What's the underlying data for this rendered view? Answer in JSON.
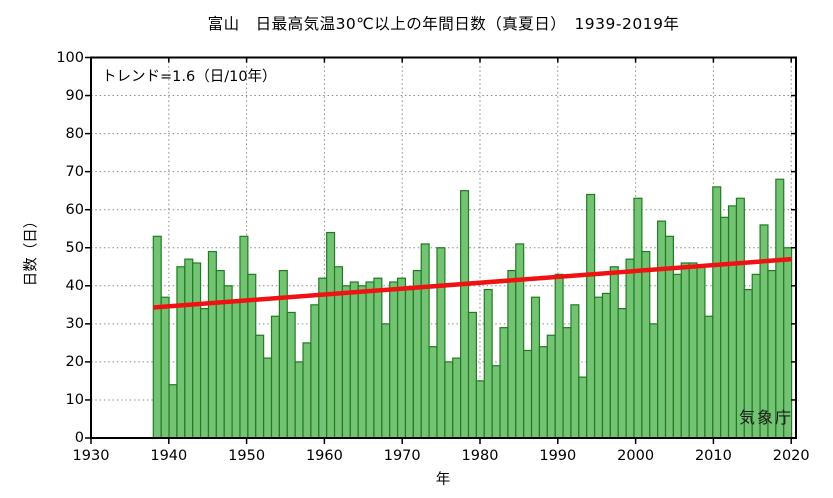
{
  "title": "富山　日最高気温30℃以上の年間日数（真夏日）　1939-2019年",
  "annotations": {
    "trend_label": "トレンド=1.6（日/10年）",
    "source": "気象庁"
  },
  "axes": {
    "xlabel": "年",
    "ylabel": "日数（日）",
    "x_ticks": [
      1930,
      1940,
      1950,
      1960,
      1970,
      1980,
      1990,
      2000,
      2010,
      2020
    ],
    "y_ticks": [
      0,
      10,
      20,
      30,
      40,
      50,
      60,
      70,
      80,
      90,
      100
    ]
  },
  "colors": {
    "bar_fill": "#74c274",
    "bar_stroke": "#1f7d1f",
    "trend_line": "#f01212",
    "grid": "#8a8a8a",
    "frame": "#000000",
    "background": "#ffffff"
  },
  "chart_data": {
    "type": "bar",
    "title": "富山　日最高気温30℃以上の年間日数（真夏日）　1939-2019年",
    "xlabel": "年",
    "ylabel": "日数（日）",
    "ylim": [
      0,
      100
    ],
    "xlim": [
      1930,
      2020.6
    ],
    "grid": true,
    "years": [
      1939,
      1940,
      1941,
      1942,
      1943,
      1944,
      1945,
      1946,
      1947,
      1948,
      1949,
      1950,
      1951,
      1952,
      1953,
      1954,
      1955,
      1956,
      1957,
      1958,
      1959,
      1960,
      1961,
      1962,
      1963,
      1964,
      1965,
      1966,
      1967,
      1968,
      1969,
      1970,
      1971,
      1972,
      1973,
      1974,
      1975,
      1976,
      1977,
      1978,
      1979,
      1980,
      1981,
      1982,
      1983,
      1984,
      1985,
      1986,
      1987,
      1988,
      1989,
      1990,
      1991,
      1992,
      1993,
      1994,
      1995,
      1996,
      1997,
      1998,
      1999,
      2000,
      2001,
      2002,
      2003,
      2004,
      2005,
      2006,
      2007,
      2008,
      2009,
      2010,
      2011,
      2012,
      2013,
      2014,
      2015,
      2016,
      2017,
      2018,
      2019
    ],
    "values": [
      53,
      37,
      14,
      45,
      47,
      46,
      34,
      49,
      44,
      40,
      36,
      53,
      43,
      27,
      21,
      32,
      44,
      33,
      20,
      25,
      35,
      42,
      54,
      45,
      40,
      41,
      40,
      41,
      42,
      30,
      41,
      42,
      39,
      44,
      51,
      24,
      50,
      20,
      21,
      65,
      33,
      15,
      39,
      19,
      29,
      44,
      51,
      23,
      37,
      24,
      27,
      43,
      29,
      35,
      16,
      64,
      37,
      38,
      45,
      34,
      47,
      63,
      49,
      30,
      57,
      53,
      43,
      46,
      46,
      45,
      32,
      66,
      58,
      61,
      63,
      39,
      43,
      56,
      44,
      68,
      50
    ],
    "trend": {
      "slope_per_decade": 1.6,
      "start_year": 1939,
      "end_year": 2019,
      "start_value": 34.3,
      "end_value": 47.0
    }
  }
}
